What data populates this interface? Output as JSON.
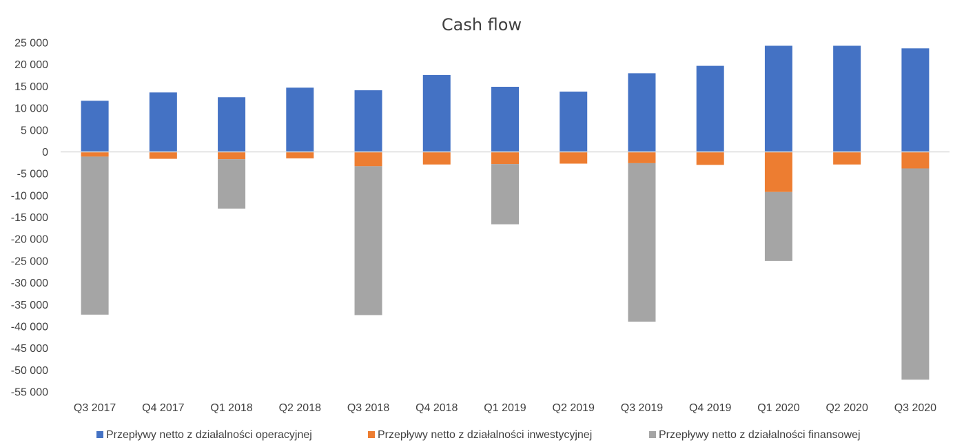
{
  "chart_data": {
    "type": "bar",
    "stacked": true,
    "title": "Cash flow",
    "xlabel": "",
    "ylabel": "",
    "ylim": [
      -55000,
      25000
    ],
    "yticks": [
      25000,
      20000,
      15000,
      10000,
      5000,
      0,
      -5000,
      -10000,
      -15000,
      -20000,
      -25000,
      -30000,
      -35000,
      -40000,
      -45000,
      -50000,
      -55000
    ],
    "ytick_labels": [
      "25 000",
      "20 000",
      "15 000",
      "10 000",
      "5 000",
      "0",
      "-5 000",
      "-10 000",
      "-15 000",
      "-20 000",
      "-25 000",
      "-30 000",
      "-35 000",
      "-40 000",
      "-45 000",
      "-50 000",
      "-55 000"
    ],
    "grid": false,
    "legend_position": "bottom",
    "categories": [
      "Q3 2017",
      "Q4 2017",
      "Q1 2018",
      "Q2 2018",
      "Q3 2018",
      "Q4 2018",
      "Q1 2019",
      "Q2 2019",
      "Q3 2019",
      "Q4 2019",
      "Q1 2020",
      "Q2 2020",
      "Q3 2020"
    ],
    "series": [
      {
        "name": "Przepływy netto z działalności operacyjnej",
        "color": "#4472C4",
        "values": [
          11700,
          13600,
          12500,
          14700,
          14100,
          17600,
          14900,
          13800,
          18000,
          19700,
          24300,
          24300,
          23700
        ]
      },
      {
        "name": "Przepływy netto z działalności inwestycyjnej",
        "color": "#ED7D31",
        "values": [
          -1100,
          -1600,
          -1700,
          -1500,
          -3300,
          -2900,
          -2800,
          -2700,
          -2600,
          -3000,
          -9200,
          -2900,
          -3800
        ]
      },
      {
        "name": "Przepływy netto z działalności finansowej",
        "color": "#A5A5A5",
        "values": [
          -36200,
          0,
          -11300,
          0,
          -34100,
          0,
          -13800,
          0,
          -36300,
          0,
          -15800,
          0,
          -48400
        ]
      }
    ]
  }
}
